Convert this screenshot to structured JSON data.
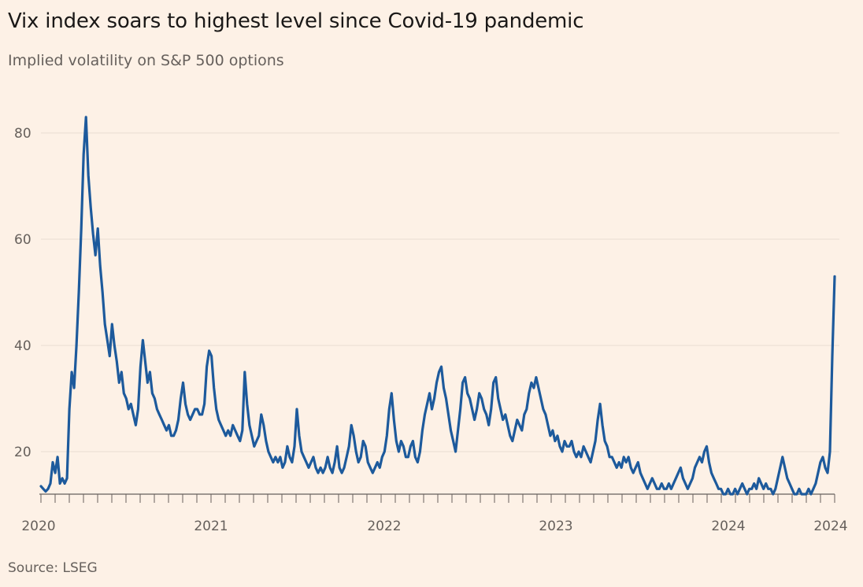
{
  "title": "Vix index soars to highest level since Covid-19 pandemic",
  "subtitle": "Implied volatility on S&P 500 options",
  "source": "Source: LSEG",
  "colors": {
    "background": "#fdf1e6",
    "line": "#1d5a9c",
    "grid": "#e9ddd2",
    "axis": "#66605c",
    "text": "#1a1817"
  },
  "chart_data": {
    "type": "line",
    "title": "Vix index soars to highest level since Covid-19 pandemic",
    "subtitle": "Implied volatility on S&P 500 options",
    "xlabel": "",
    "ylabel": "",
    "ylim": [
      12,
      84
    ],
    "y_ticks": [
      20,
      40,
      60,
      80
    ],
    "x_tick_labels": [
      "2020",
      "2021",
      "2022",
      "2023",
      "2024",
      "2024"
    ],
    "grid": "horizontal",
    "legend": "none",
    "series": [
      {
        "values": [
          13.5,
          13,
          12.5,
          13,
          14,
          18,
          16,
          19,
          14,
          15,
          14,
          15,
          28,
          35,
          32,
          40,
          50,
          62,
          76,
          83,
          72,
          66,
          61,
          57,
          62,
          55,
          50,
          44,
          41,
          38,
          44,
          40,
          37,
          33,
          35,
          31,
          30,
          28,
          29,
          27,
          25,
          28,
          36,
          41,
          37,
          33,
          35,
          31,
          30,
          28,
          27,
          26,
          25,
          24,
          25,
          23,
          23,
          24,
          26,
          30,
          33,
          29,
          27,
          26,
          27,
          28,
          28,
          27,
          27,
          29,
          36,
          39,
          38,
          32,
          28,
          26,
          25,
          24,
          23,
          24,
          23,
          25,
          24,
          23,
          22,
          24,
          35,
          29,
          25,
          23,
          21,
          22,
          23,
          27,
          25,
          22,
          20,
          19,
          18,
          19,
          18,
          19,
          17,
          18,
          21,
          19,
          18,
          21,
          28,
          23,
          20,
          19,
          18,
          17,
          18,
          19,
          17,
          16,
          17,
          16,
          17,
          19,
          17,
          16,
          18,
          21,
          17,
          16,
          17,
          19,
          21,
          25,
          23,
          20,
          18,
          19,
          22,
          21,
          18,
          17,
          16,
          17,
          18,
          17,
          19,
          20,
          23,
          28,
          31,
          26,
          22,
          20,
          22,
          21,
          19,
          19,
          21,
          22,
          19,
          18,
          20,
          24,
          27,
          29,
          31,
          28,
          30,
          33,
          35,
          36,
          32,
          30,
          27,
          24,
          22,
          20,
          24,
          28,
          33,
          34,
          31,
          30,
          28,
          26,
          28,
          31,
          30,
          28,
          27,
          25,
          28,
          33,
          34,
          30,
          28,
          26,
          27,
          25,
          23,
          22,
          24,
          26,
          25,
          24,
          27,
          28,
          31,
          33,
          32,
          34,
          32,
          30,
          28,
          27,
          25,
          23,
          24,
          22,
          23,
          21,
          20,
          22,
          21,
          21,
          22,
          20,
          19,
          20,
          19,
          21,
          20,
          19,
          18,
          20,
          22,
          26,
          29,
          25,
          22,
          21,
          19,
          19,
          18,
          17,
          18,
          17,
          19,
          18,
          19,
          17,
          16,
          17,
          18,
          16,
          15,
          14,
          13,
          14,
          15,
          14,
          13,
          13,
          14,
          13,
          13,
          14,
          13,
          14,
          15,
          16,
          17,
          15,
          14,
          13,
          14,
          15,
          17,
          18,
          19,
          18,
          20,
          21,
          18,
          16,
          15,
          14,
          13,
          13,
          12,
          12,
          13,
          12,
          12,
          13,
          12,
          13,
          14,
          13,
          12,
          13,
          13,
          14,
          13,
          15,
          14,
          13,
          14,
          13,
          13,
          12,
          13,
          15,
          17,
          19,
          17,
          15,
          14,
          13,
          12,
          12,
          13,
          12,
          12,
          12,
          13,
          12,
          13,
          14,
          16,
          18,
          19,
          17,
          16,
          20,
          38,
          53
        ]
      }
    ]
  }
}
